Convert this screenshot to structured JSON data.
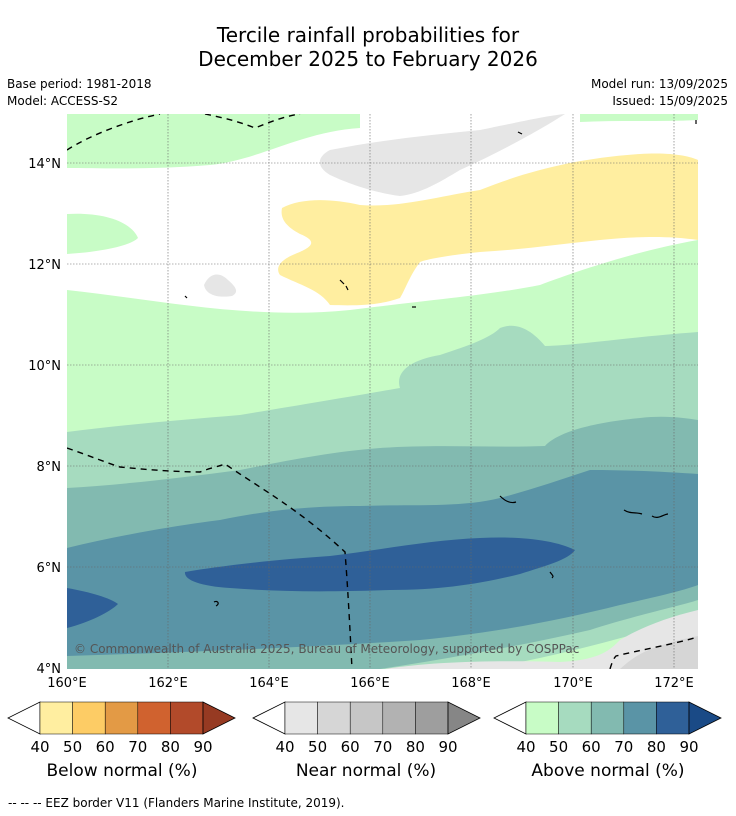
{
  "title_line1": "Tercile rainfall probabilities for",
  "title_line2": "December 2025 to February 2026",
  "base_period": "Base period: 1981-2018",
  "model": "Model: ACCESS-S2",
  "model_run": "Model run: 13/09/2025",
  "issued": "Issued: 15/09/2025",
  "copyright": "© Commonwealth of Australia 2025, Bureau of Meteorology, supported by COSPPac",
  "map": {
    "lon_range": [
      160,
      172.5
    ],
    "lat_range": [
      4,
      15
    ],
    "lon_ticks": [
      "160°E",
      "162°E",
      "164°E",
      "166°E",
      "168°E",
      "170°E",
      "172°E"
    ],
    "lat_ticks": [
      "4°N",
      "6°N",
      "8°N",
      "10°N",
      "12°N",
      "14°N"
    ]
  },
  "colorbars": [
    {
      "label": "Below normal (%)",
      "ticks": [
        "40",
        "50",
        "60",
        "70",
        "80",
        "90"
      ],
      "colors": [
        "#ffeea0",
        "#fdcc65",
        "#e39a45",
        "#d0622f",
        "#b24a2a",
        "#963a22"
      ]
    },
    {
      "label": "Near normal (%)",
      "ticks": [
        "40",
        "50",
        "60",
        "70",
        "80",
        "90"
      ],
      "colors": [
        "#e6e6e6",
        "#d6d6d6",
        "#c6c6c6",
        "#b2b2b2",
        "#9e9e9e",
        "#868686"
      ]
    },
    {
      "label": "Above normal (%)",
      "ticks": [
        "40",
        "50",
        "60",
        "70",
        "80",
        "90"
      ],
      "colors": [
        "#c8fcc6",
        "#a6dbbf",
        "#82bab0",
        "#5a94a6",
        "#2f6098",
        "#1a4a86"
      ]
    }
  ],
  "footer": "--  --  -- EEZ border V11 (Flanders Marine Institute, 2019)."
}
